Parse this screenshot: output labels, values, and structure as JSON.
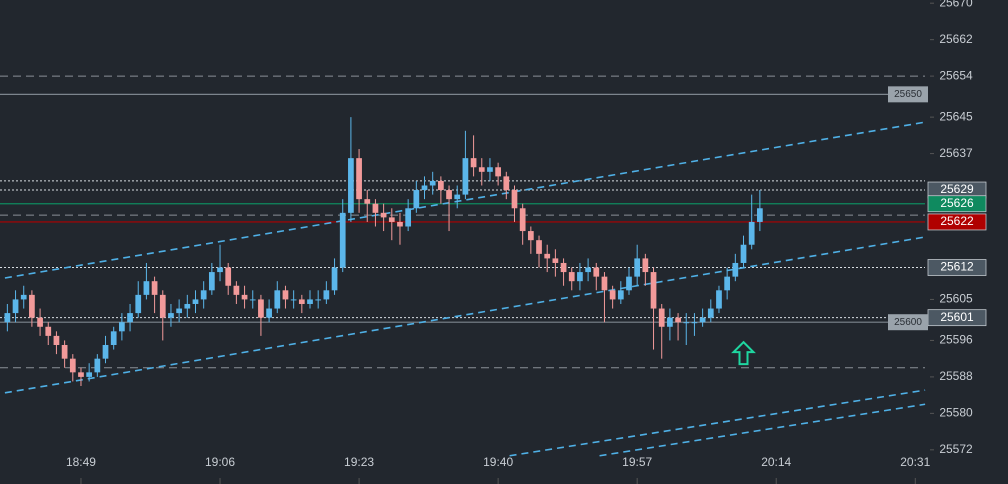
{
  "chart_data": {
    "type": "candlestick",
    "x": [
      1120,
      1121,
      1122,
      1123,
      1124,
      1125,
      1126,
      1127,
      1128,
      1129,
      1130,
      1131,
      1132,
      1133,
      1134,
      1135,
      1136,
      1137,
      1138,
      1139,
      1140,
      1141,
      1142,
      1143,
      1144,
      1145,
      1146,
      1147,
      1148,
      1149,
      1150,
      1151,
      1152,
      1153,
      1154,
      1155,
      1156,
      1157,
      1158,
      1159,
      1160,
      1161,
      1162,
      1163,
      1164,
      1165,
      1166,
      1167,
      1168,
      1169,
      1170,
      1171,
      1172,
      1173,
      1174,
      1175,
      1176,
      1177,
      1178,
      1179,
      1180,
      1181,
      1182,
      1183,
      1184,
      1185,
      1186,
      1187,
      1188,
      1189,
      1190,
      1191,
      1192,
      1193,
      1194,
      1195,
      1196,
      1197,
      1198,
      1199,
      1200,
      1201,
      1202,
      1203,
      1204,
      1205,
      1206,
      1207,
      1208,
      1209,
      1210,
      1211,
      1212
    ],
    "open": [
      25600,
      25602,
      25605,
      25606,
      25601,
      25599,
      25597,
      25595,
      25592,
      25589,
      25588,
      25589,
      25592,
      25595,
      25598,
      25600,
      25602,
      25606,
      25609,
      25606,
      25601,
      25602,
      25603,
      25604,
      25605,
      25607,
      25611,
      25612,
      25608,
      25606,
      25605,
      25605,
      25601,
      25603,
      25607,
      25605,
      25605,
      25604,
      25605,
      25605,
      25607,
      25612,
      25624,
      25636,
      25627,
      25626,
      25624,
      25623,
      25622,
      25621,
      25625,
      25629,
      25630,
      25631,
      25629,
      25627,
      25628,
      25636,
      25634,
      25633,
      25634,
      25632,
      25629,
      25625,
      25620,
      25618,
      25615,
      25614,
      25613,
      25611,
      25609,
      25611,
      25612,
      25610,
      25607,
      25605,
      25607,
      25610,
      25614,
      25611,
      25603,
      25599,
      25601,
      25600,
      25600,
      25600,
      25601,
      25603,
      25607,
      25610,
      25613,
      25617,
      25622
    ],
    "high": [
      25604,
      25607,
      25608,
      25607,
      25603,
      25600,
      25598,
      25596,
      25593,
      25590,
      25591,
      25593,
      25597,
      25599,
      25602,
      25604,
      25609,
      25613,
      25610,
      25607,
      25604,
      25605,
      25606,
      25607,
      25609,
      25613,
      25617,
      25613,
      25609,
      25608,
      25607,
      25606,
      25605,
      25609,
      25608,
      25607,
      25606,
      25607,
      25607,
      25609,
      25614,
      25627,
      25645,
      25638,
      25629,
      25627,
      25626,
      25625,
      25624,
      25627,
      25631,
      25632,
      25633,
      25632,
      25630,
      25630,
      25642,
      25641,
      25636,
      25636,
      25635,
      25633,
      25630,
      25626,
      25621,
      25619,
      25617,
      25616,
      25614,
      25612,
      25613,
      25614,
      25613,
      25611,
      25608,
      25609,
      25612,
      25617,
      25615,
      25612,
      25604,
      25603,
      25602,
      25602,
      25602,
      25603,
      25605,
      25608,
      25612,
      25615,
      25619,
      25628,
      25629
    ],
    "low": [
      25598,
      25600,
      25603,
      25599,
      25597,
      25595,
      25593,
      25590,
      25587,
      25586,
      25587,
      25588,
      25591,
      25594,
      25596,
      25598,
      25601,
      25605,
      25602,
      25596,
      25599,
      25600,
      25601,
      25602,
      25603,
      25606,
      25609,
      25606,
      25604,
      25603,
      25603,
      25597,
      25600,
      25602,
      25603,
      25603,
      25602,
      25603,
      25603,
      25604,
      25606,
      25611,
      25622,
      25624,
      25622,
      25621,
      25620,
      25618,
      25617,
      25620,
      25624,
      25627,
      25628,
      25626,
      25620,
      25625,
      25627,
      25632,
      25630,
      25631,
      25630,
      25627,
      25622,
      25617,
      25615,
      25612,
      25611,
      25610,
      25608,
      25607,
      25607,
      25609,
      25607,
      25600,
      25603,
      25604,
      25606,
      25608,
      25608,
      25594,
      25592,
      25596,
      25596,
      25595,
      25597,
      25599,
      25600,
      25602,
      25605,
      25609,
      25612,
      25616,
      25620
    ],
    "close": [
      25602,
      25605,
      25606,
      25601,
      25599,
      25597,
      25595,
      25592,
      25589,
      25588,
      25589,
      25592,
      25595,
      25598,
      25600,
      25602,
      25606,
      25609,
      25606,
      25601,
      25602,
      25603,
      25604,
      25605,
      25607,
      25611,
      25612,
      25608,
      25606,
      25605,
      25605,
      25601,
      25603,
      25607,
      25605,
      25605,
      25604,
      25605,
      25605,
      25607,
      25612,
      25624,
      25636,
      25627,
      25626,
      25624,
      25623,
      25622,
      25621,
      25625,
      25629,
      25630,
      25631,
      25629,
      25627,
      25628,
      25636,
      25634,
      25633,
      25634,
      25632,
      25629,
      25625,
      25620,
      25618,
      25615,
      25614,
      25613,
      25611,
      25609,
      25611,
      25612,
      25610,
      25607,
      25605,
      25607,
      25610,
      25614,
      25611,
      25603,
      25599,
      25601,
      25600,
      25600,
      25600,
      25601,
      25603,
      25607,
      25610,
      25613,
      25617,
      25622,
      25625
    ],
    "up_color": "#5bb6ea",
    "down_color": "#f29a9a",
    "xlim": [
      1119.1,
      1232.8
    ],
    "xticks": [
      {
        "value": 1129,
        "label": "18:49"
      },
      {
        "value": 1146,
        "label": "19:06"
      },
      {
        "value": 1163,
        "label": "19:23"
      },
      {
        "value": 1180,
        "label": "19:40"
      },
      {
        "value": 1197,
        "label": "19:57"
      },
      {
        "value": 1214,
        "label": "20:14"
      },
      {
        "value": 1231,
        "label": "20:31"
      }
    ],
    "ylim": [
      25564.5,
      25670.7
    ],
    "yticks": [
      25670,
      25662,
      25654,
      25645,
      25637,
      25629,
      25612,
      25605,
      25596,
      25588,
      25580,
      25572
    ],
    "levels": [
      {
        "value": 25654,
        "style": "dash",
        "color": "#8a9097"
      },
      {
        "value": 25650,
        "label": "25650",
        "style": "solid",
        "color": "#7d858d"
      },
      {
        "value": 25631,
        "style": "dot",
        "color": "#d8dde2"
      },
      {
        "value": 25629,
        "label": "25629",
        "style": "dot",
        "color": "#d8dde2"
      },
      {
        "value": 25626,
        "label": "25626",
        "style": "solid",
        "color": "#0f8a5f"
      },
      {
        "value": 25623.5,
        "style": "dash",
        "color": "#8a9097"
      },
      {
        "value": 25622,
        "label": "25622",
        "style": "solid",
        "color": "#b00000"
      },
      {
        "value": 25612,
        "label": "25612",
        "style": "dot",
        "color": "#d8dde2"
      },
      {
        "value": 25601,
        "label": "25601",
        "style": "dot",
        "color": "#d8dde2"
      },
      {
        "value": 25600,
        "label": "25600",
        "style": "solid",
        "color": "#7d858d"
      },
      {
        "value": 25590,
        "style": "dash",
        "color": "#8a9097"
      }
    ],
    "trendlines": [
      {
        "x": [
          1119.7,
          1232.2
        ],
        "y": [
          25609.7,
          25643.9
        ]
      },
      {
        "x": [
          1119.7,
          1232.2
        ],
        "y": [
          25584.5,
          25618.7
        ]
      },
      {
        "x": [
          1181.4,
          1232.2
        ],
        "y": [
          25570.7,
          25585.1
        ]
      },
      {
        "x": [
          1192.4,
          1232.2
        ],
        "y": [
          25570.7,
          25582
        ]
      }
    ],
    "trend_color": "#4fb0e6",
    "signals": [
      {
        "x": 1210,
        "y": 25593,
        "color": "#1fd6a0"
      }
    ]
  }
}
